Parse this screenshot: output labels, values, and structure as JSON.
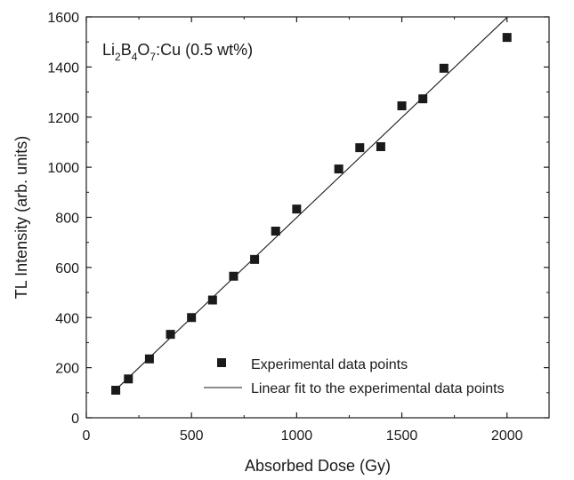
{
  "chart_data": {
    "type": "scatter",
    "xlabel": "Absorbed Dose (Gy)",
    "ylabel": "TL Intensity (arb. units)",
    "xlim": [
      0,
      2200
    ],
    "ylim": [
      0,
      1600
    ],
    "xticks": [
      0,
      500,
      1000,
      1500,
      2000
    ],
    "yticks": [
      0,
      200,
      400,
      600,
      800,
      1000,
      1200,
      1400,
      1600
    ],
    "xtick_labels": [
      "0",
      "500",
      "1000",
      "1500",
      "2000"
    ],
    "ytick_labels": [
      "0",
      "200",
      "400",
      "600",
      "800",
      "1000",
      "1200",
      "1400",
      "1600"
    ],
    "annotation": {
      "parts": [
        {
          "text": "Li",
          "sub": false
        },
        {
          "text": "2",
          "sub": true
        },
        {
          "text": "B",
          "sub": false
        },
        {
          "text": "4",
          "sub": true
        },
        {
          "text": "O",
          "sub": false
        },
        {
          "text": "7",
          "sub": true
        },
        {
          "text": ":Cu (0.5 wt%)",
          "sub": false
        }
      ]
    },
    "legend_position": "bottom-right",
    "grid": false,
    "series": [
      {
        "name": "Experimental data points",
        "marker": "square",
        "color": "#1a1a1a",
        "x": [
          140,
          200,
          300,
          400,
          500,
          600,
          700,
          800,
          900,
          1000,
          1200,
          1300,
          1400,
          1500,
          1600,
          1700,
          2000
        ],
        "y": [
          110,
          155,
          235,
          333,
          400,
          470,
          565,
          632,
          745,
          833,
          993,
          1078,
          1082,
          1245,
          1273,
          1395,
          1518
        ]
      },
      {
        "name": "Linear fit to the experimental data points",
        "line": true,
        "color": "#1a1a1a",
        "x": [
          140,
          2000
        ],
        "y": [
          112,
          1598
        ]
      }
    ]
  }
}
